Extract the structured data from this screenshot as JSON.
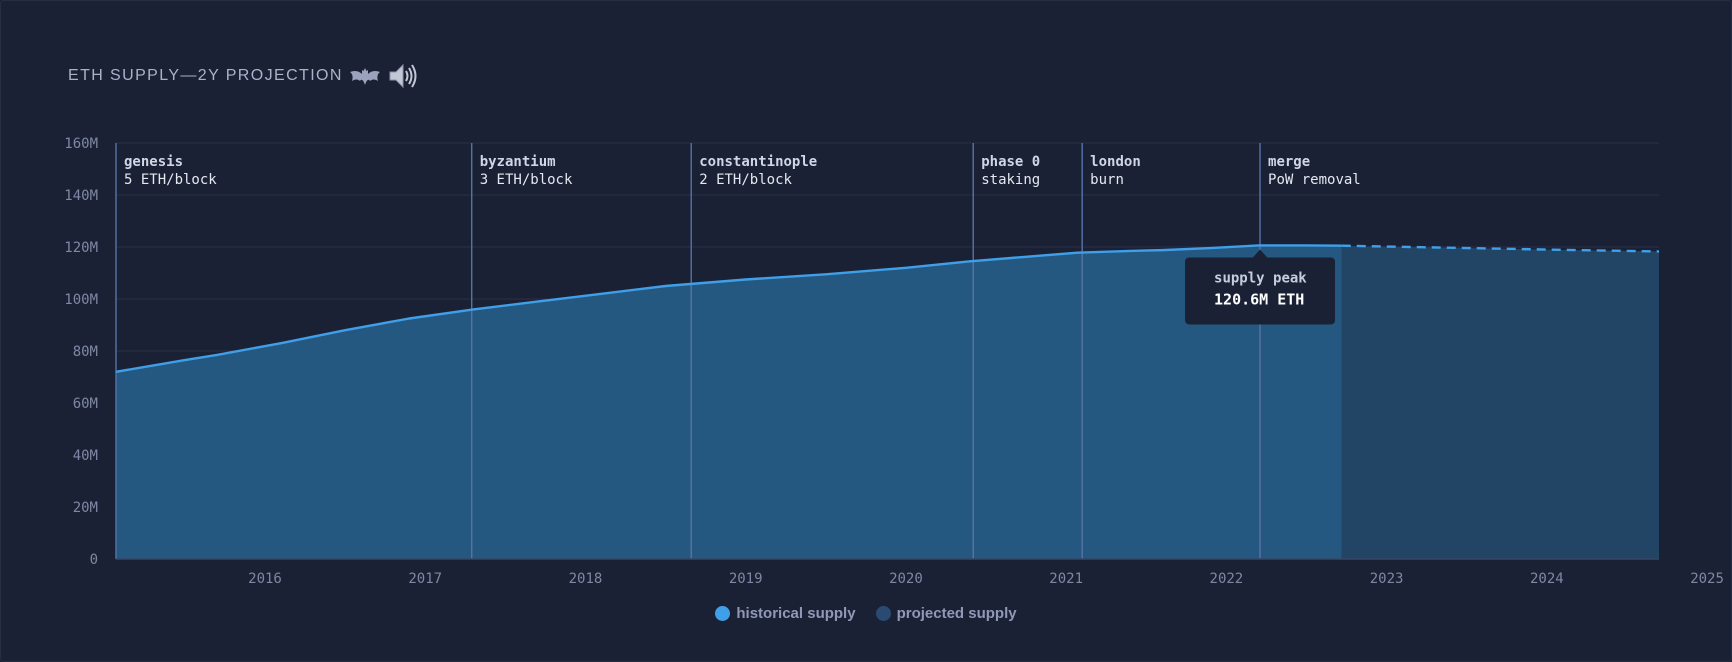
{
  "chart_data": {
    "type": "area",
    "title": "ETH SUPPLY—2Y PROJECTION",
    "xlabel": "",
    "ylabel": "",
    "ylim": [
      0,
      160
    ],
    "y_unit": "M ETH",
    "yticks": [
      "0",
      "20M",
      "40M",
      "60M",
      "80M",
      "100M",
      "120M",
      "140M",
      "160M"
    ],
    "xlim": [
      2015.57,
      2025.2
    ],
    "xticks": [
      "2016",
      "2017",
      "2018",
      "2019",
      "2020",
      "2021",
      "2022",
      "2023",
      "2024",
      "2025"
    ],
    "grid": true,
    "legend_position": "bottom-center",
    "series": [
      {
        "name": "historical supply",
        "color": "#3f9fe8",
        "fill": "#255880",
        "style": "solid",
        "x": [
          2015.57,
          2016.0,
          2016.2,
          2016.6,
          2017.0,
          2017.4,
          2017.8,
          2018.2,
          2018.6,
          2019.0,
          2019.5,
          2020.0,
          2020.5,
          2020.9,
          2021.2,
          2021.57,
          2021.9,
          2022.1,
          2022.4,
          2022.7,
          2023.0,
          2023.22
        ],
        "values": [
          72.0,
          76.5,
          78.5,
          83.0,
          88.0,
          92.5,
          96.0,
          99.0,
          102.0,
          105.0,
          107.5,
          109.5,
          112.0,
          114.5,
          116.0,
          117.8,
          118.5,
          118.8,
          119.6,
          120.6,
          120.6,
          120.5
        ]
      },
      {
        "name": "projected supply",
        "color": "#3f9fe8",
        "fill": "#224565",
        "style": "dashed",
        "x": [
          2023.22,
          2024.0,
          2024.6,
          2025.2
        ],
        "values": [
          120.5,
          119.6,
          118.9,
          118.3
        ]
      }
    ],
    "events": [
      {
        "x": 2015.57,
        "name": "genesis",
        "detail": "5 ETH/block"
      },
      {
        "x": 2017.79,
        "name": "byzantium",
        "detail": "3 ETH/block"
      },
      {
        "x": 2019.16,
        "name": "constantinople",
        "detail": "2 ETH/block"
      },
      {
        "x": 2020.92,
        "name": "phase 0",
        "detail": "staking"
      },
      {
        "x": 2021.6,
        "name": "london",
        "detail": "burn"
      },
      {
        "x": 2022.71,
        "name": "merge",
        "detail": "PoW removal"
      }
    ],
    "annotation": {
      "x": 2022.71,
      "y": 120.6,
      "label": "supply peak",
      "value": "120.6M ETH"
    }
  },
  "legend": {
    "historical": {
      "label": "historical supply",
      "color": "#3f9fe8"
    },
    "projected": {
      "label": "projected supply",
      "color": "#2a4a72"
    }
  },
  "icons": {
    "title": [
      "bat-icon",
      "speaker-icon"
    ]
  }
}
